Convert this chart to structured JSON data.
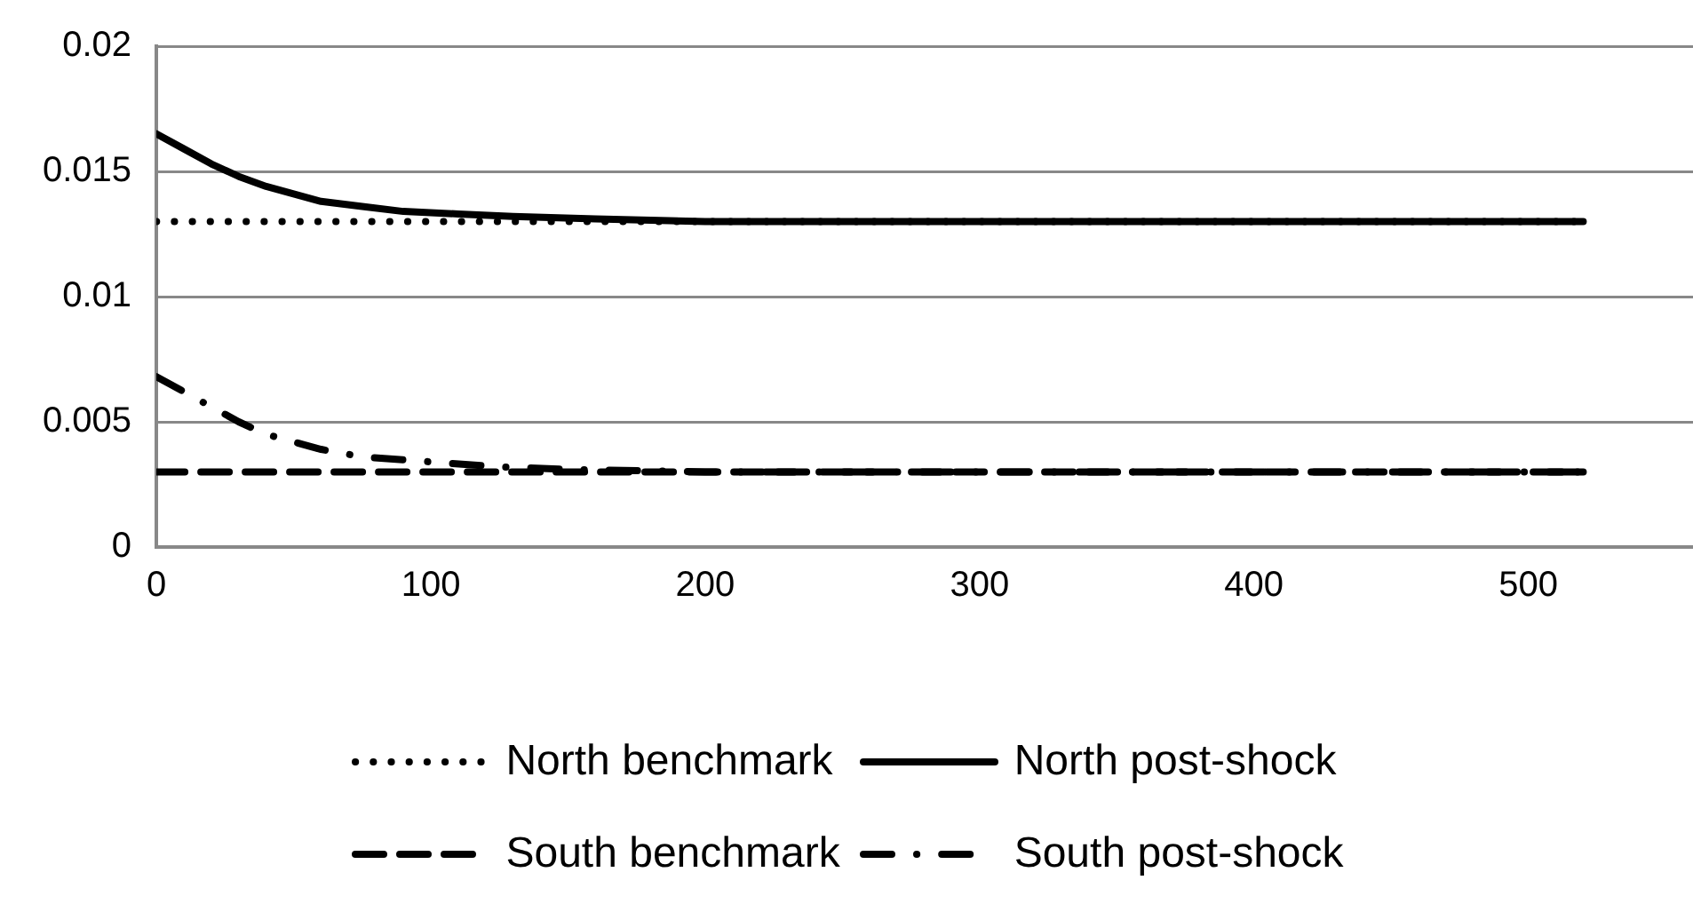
{
  "chart_data": {
    "type": "line",
    "xlim": [
      0,
      560
    ],
    "xticks": [
      0,
      100,
      200,
      300,
      400,
      500
    ],
    "ylim": [
      0,
      0.02
    ],
    "yticks": [
      0,
      0.005,
      0.01,
      0.015,
      0.02
    ],
    "grid": "y",
    "legend": "bottom",
    "marker": "none",
    "series": [
      {
        "name": "North benchmark",
        "color": "#000000",
        "line_style": "dotted",
        "x": [
          0,
          520
        ],
        "values": [
          0.013,
          0.013
        ]
      },
      {
        "name": "North post-shock",
        "color": "#000000",
        "line_style": "solid",
        "x": [
          0,
          10,
          20,
          30,
          40,
          50,
          60,
          75,
          90,
          110,
          130,
          160,
          200,
          300,
          400,
          520
        ],
        "values": [
          0.0165,
          0.0159,
          0.0153,
          0.0148,
          0.0144,
          0.0141,
          0.0138,
          0.0136,
          0.0134,
          0.0133,
          0.0132,
          0.0131,
          0.013,
          0.013,
          0.013,
          0.013
        ]
      },
      {
        "name": "South benchmark",
        "color": "#000000",
        "line_style": "dashed",
        "x": [
          0,
          520
        ],
        "values": [
          0.003,
          0.003
        ]
      },
      {
        "name": "South post-shock",
        "color": "#000000",
        "line_style": "dashdot",
        "x": [
          0,
          10,
          20,
          30,
          40,
          50,
          60,
          75,
          100,
          125,
          150,
          200,
          300,
          400,
          520
        ],
        "values": [
          0.0068,
          0.0062,
          0.0056,
          0.005,
          0.0045,
          0.0042,
          0.0039,
          0.0036,
          0.0034,
          0.0032,
          0.0031,
          0.003,
          0.003,
          0.003,
          0.003
        ]
      }
    ]
  }
}
